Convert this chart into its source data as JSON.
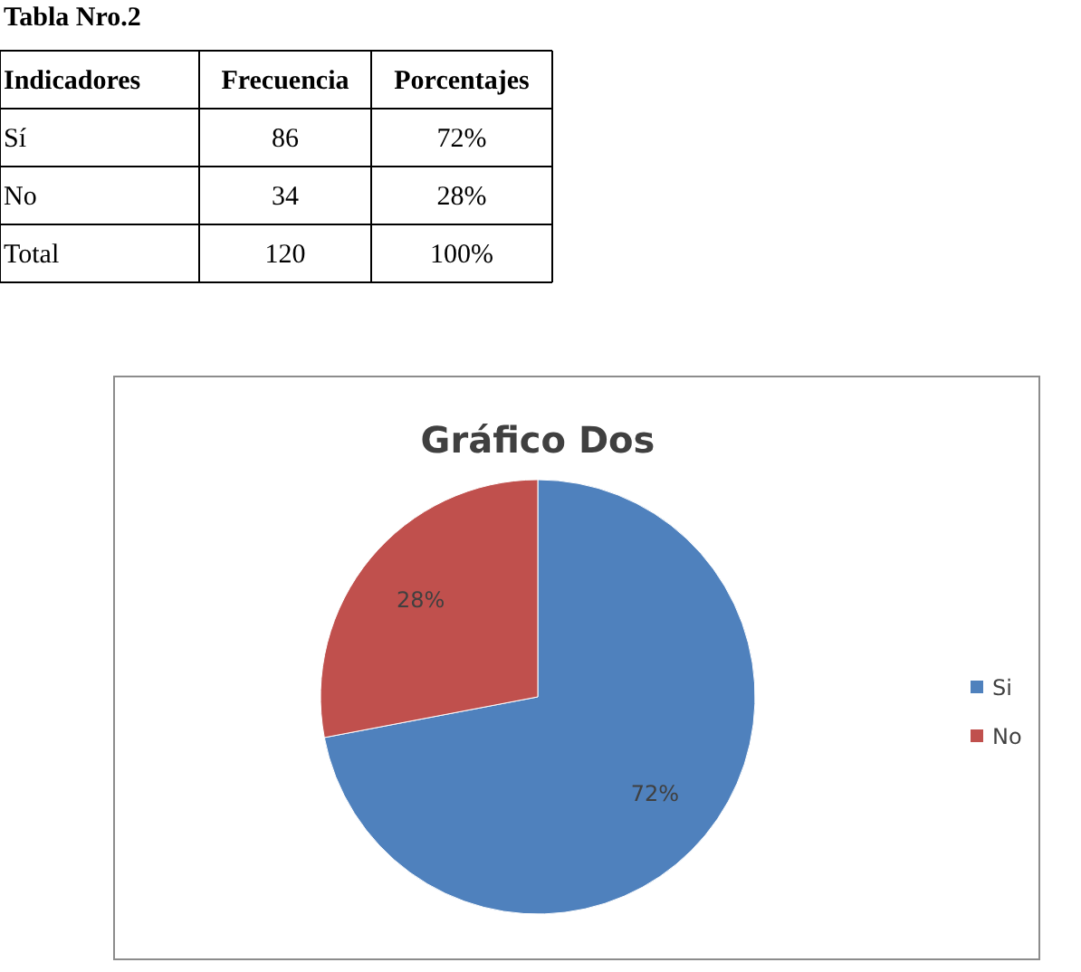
{
  "chart_data": {
    "type": "pie",
    "title": "Gráfico Dos",
    "categories": [
      "Si",
      "No"
    ],
    "values": [
      72,
      28
    ],
    "colors": [
      "#4f81bd",
      "#c0504d"
    ],
    "value_labels": [
      "72%",
      "28%"
    ],
    "legend": "right",
    "annotations": [
      "Tabla Nro.2",
      "Indicadores",
      "Frecuencia",
      "Porcentajes",
      "Sí",
      "86",
      "72%",
      "No",
      "34",
      "28%",
      "Total",
      "120",
      "100%"
    ]
  }
}
